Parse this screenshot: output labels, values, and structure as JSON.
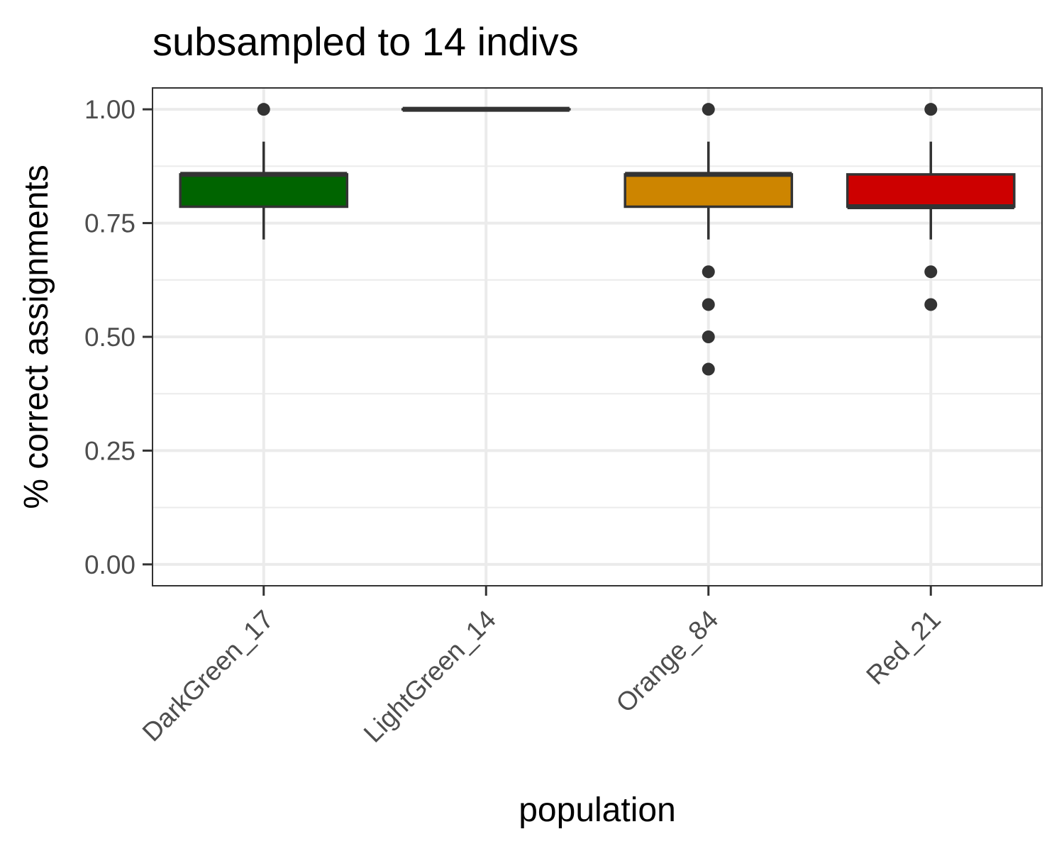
{
  "chart_data": {
    "type": "box",
    "title": "subsampled to 14 indivs",
    "xlabel": "population",
    "ylabel": "% correct assignments",
    "ylim": [
      -0.047,
      1.047
    ],
    "yticks": [
      "0.00",
      "0.25",
      "0.50",
      "0.75",
      "1.00"
    ],
    "ytick_values": [
      0,
      0.25,
      0.5,
      0.75,
      1
    ],
    "grid": true,
    "categories": [
      "DarkGreen_17",
      "LightGreen_14",
      "Orange_84",
      "Red_21"
    ],
    "boxes": [
      {
        "name": "DarkGreen_17",
        "color": "#006400",
        "whisker_low": 0.714,
        "q1": 0.786,
        "median": 0.857,
        "q3": 0.857,
        "whisker_high": 0.929,
        "outliers": [
          1.0
        ]
      },
      {
        "name": "LightGreen_14",
        "color": "#90ee90",
        "whisker_low": 1.0,
        "q1": 1.0,
        "median": 1.0,
        "q3": 1.0,
        "whisker_high": 1.0,
        "outliers": []
      },
      {
        "name": "Orange_84",
        "color": "#cd8500",
        "whisker_low": 0.714,
        "q1": 0.786,
        "median": 0.857,
        "q3": 0.857,
        "whisker_high": 0.929,
        "outliers": [
          1.0,
          0.643,
          0.571,
          0.5,
          0.429
        ]
      },
      {
        "name": "Red_21",
        "color": "#cd0000",
        "whisker_low": 0.714,
        "q1": 0.786,
        "median": 0.786,
        "q3": 0.857,
        "whisker_high": 0.929,
        "outliers": [
          1.0,
          0.643,
          0.571
        ]
      }
    ]
  }
}
